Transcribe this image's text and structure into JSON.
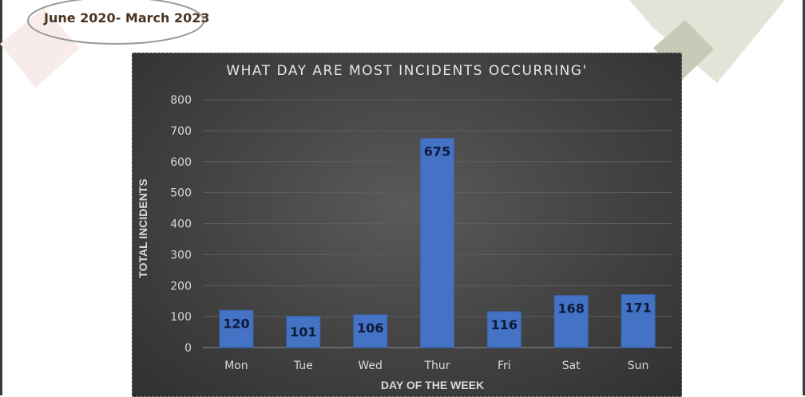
{
  "slide": {
    "date_range": "June 2020- March 2023"
  },
  "chart_data": {
    "type": "bar",
    "title": "WHAT DAY ARE MOST INCIDENTS OCCURRING'",
    "xlabel": "DAY OF THE WEEK",
    "ylabel": "TOTAL INCIDENTS",
    "categories": [
      "Mon",
      "Tue",
      "Wed",
      "Thur",
      "Fri",
      "Sat",
      "Sun"
    ],
    "values": [
      120,
      101,
      106,
      675,
      116,
      168,
      171
    ],
    "ylim": [
      0,
      800
    ],
    "yticks": [
      0,
      100,
      200,
      300,
      400,
      500,
      600,
      700,
      800
    ],
    "grid": true,
    "legend": "none",
    "colors": {
      "bar": "#4472c4",
      "background": "#3f3f3f",
      "data_label": "#0d1b3a",
      "axis_text": "#d9d9d9"
    }
  }
}
